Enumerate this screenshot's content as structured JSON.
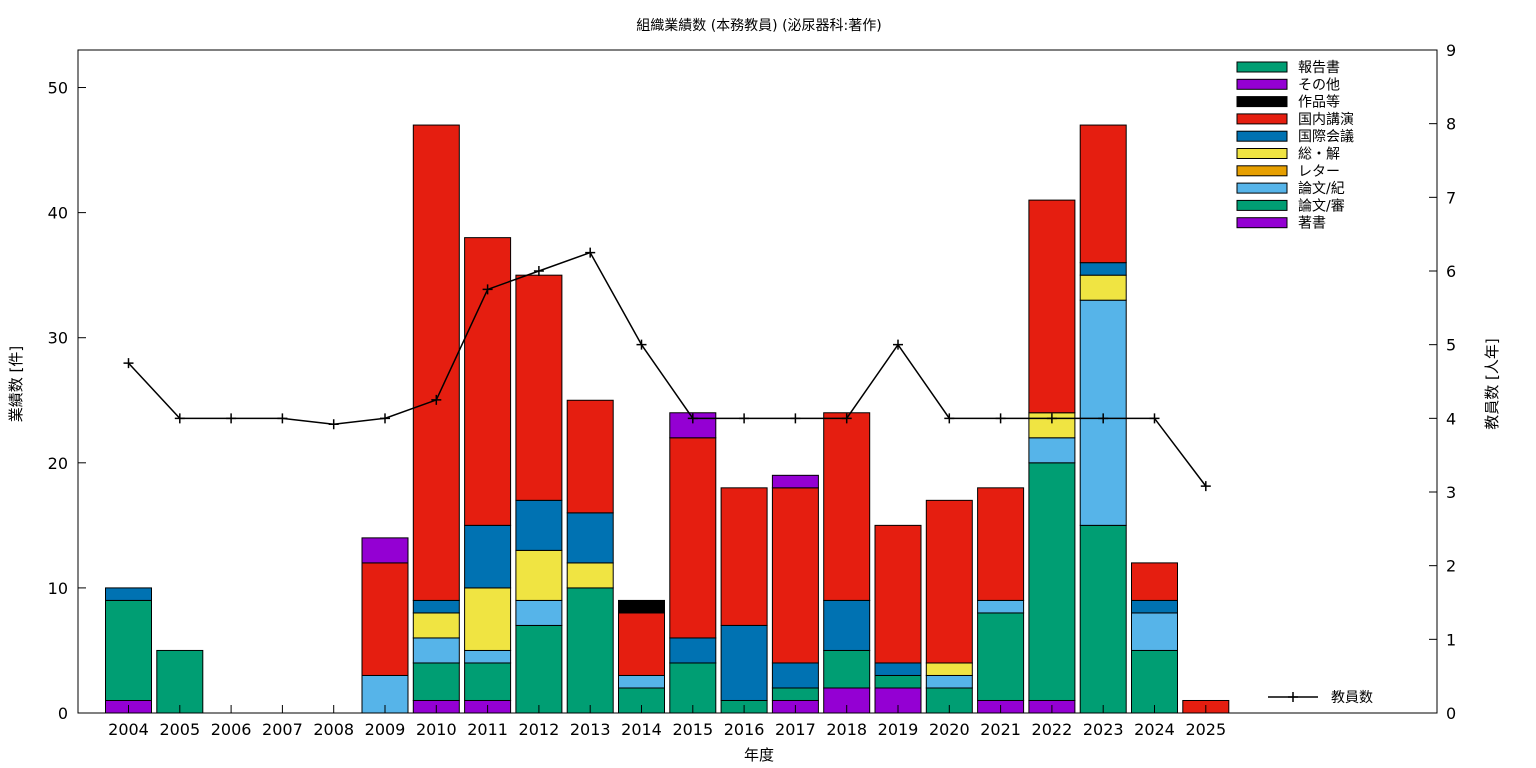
{
  "chart_data": {
    "type": "bar",
    "title": "組織業績数 (本務教員) (泌尿器科:著作)",
    "xlabel": "年度",
    "ylabel": "業績数 [件]",
    "y2label": "教員数 [人年]",
    "ylim": [
      0,
      53
    ],
    "y2lim": [
      0,
      9
    ],
    "yticks": [
      0,
      10,
      20,
      30,
      40,
      50
    ],
    "y2ticks": [
      0,
      1,
      2,
      3,
      4,
      5,
      6,
      7,
      8,
      9
    ],
    "stacked": true,
    "legend_position": "top-right",
    "categories": [
      "2004",
      "2005",
      "2006",
      "2007",
      "2008",
      "2009",
      "2010",
      "2011",
      "2012",
      "2013",
      "2014",
      "2015",
      "2016",
      "2017",
      "2018",
      "2019",
      "2020",
      "2021",
      "2022",
      "2023",
      "2024",
      "2025"
    ],
    "series": [
      {
        "name": "著書",
        "color": "#9400d3",
        "values": [
          1,
          0,
          0,
          0,
          0,
          0,
          1,
          1,
          0,
          0,
          0,
          0,
          0,
          1,
          2,
          2,
          0,
          1,
          1,
          0,
          0,
          0
        ]
      },
      {
        "name": "論文/審",
        "color": "#009e73",
        "values": [
          8,
          5,
          0,
          0,
          0,
          0,
          3,
          3,
          7,
          10,
          2,
          4,
          1,
          1,
          3,
          1,
          2,
          7,
          19,
          15,
          5,
          0
        ]
      },
      {
        "name": "論文/紀",
        "color": "#56b4e9",
        "values": [
          0,
          0,
          0,
          0,
          0,
          3,
          2,
          1,
          2,
          0,
          1,
          0,
          0,
          0,
          0,
          0,
          1,
          1,
          2,
          18,
          3,
          0
        ]
      },
      {
        "name": "レター",
        "color": "#e69f00",
        "values": [
          0,
          0,
          0,
          0,
          0,
          0,
          0,
          0,
          0,
          0,
          0,
          0,
          0,
          0,
          0,
          0,
          0,
          0,
          0,
          0,
          0,
          0
        ]
      },
      {
        "name": "総・解",
        "color": "#f0e442",
        "values": [
          0,
          0,
          0,
          0,
          0,
          0,
          2,
          5,
          4,
          2,
          0,
          0,
          0,
          0,
          0,
          0,
          1,
          0,
          2,
          2,
          0,
          0
        ]
      },
      {
        "name": "国際会議",
        "color": "#0072b2",
        "values": [
          1,
          0,
          0,
          0,
          0,
          0,
          1,
          5,
          4,
          4,
          0,
          2,
          6,
          2,
          4,
          1,
          0,
          0,
          0,
          1,
          1,
          0
        ]
      },
      {
        "name": "国内講演",
        "color": "#e51e10",
        "values": [
          0,
          0,
          0,
          0,
          0,
          9,
          38,
          23,
          18,
          9,
          5,
          16,
          11,
          14,
          15,
          11,
          13,
          9,
          17,
          11,
          3,
          1
        ]
      },
      {
        "name": "作品等",
        "color": "#000000",
        "values": [
          0,
          0,
          0,
          0,
          0,
          0,
          0,
          0,
          0,
          0,
          1,
          0,
          0,
          0,
          0,
          0,
          0,
          0,
          0,
          0,
          0,
          0
        ]
      },
      {
        "name": "その他",
        "color": "#9400d3",
        "values": [
          0,
          0,
          0,
          0,
          0,
          2,
          0,
          0,
          0,
          0,
          0,
          2,
          0,
          1,
          0,
          0,
          0,
          0,
          0,
          0,
          0,
          0
        ]
      },
      {
        "name": "報告書",
        "color": "#009e73",
        "values": [
          0,
          0,
          0,
          0,
          0,
          0,
          0,
          0,
          0,
          0,
          0,
          0,
          0,
          0,
          0,
          0,
          0,
          0,
          0,
          0,
          0,
          0
        ]
      }
    ],
    "line": {
      "name": "教員数",
      "axis": "y2",
      "color": "#000000",
      "values": [
        4.75,
        4.0,
        4.0,
        4.0,
        3.92,
        4.0,
        4.25,
        5.75,
        6.0,
        6.25,
        5.0,
        4.0,
        4.0,
        4.0,
        4.0,
        5.0,
        4.0,
        4.0,
        4.0,
        4.0,
        4.0,
        3.08
      ]
    }
  }
}
